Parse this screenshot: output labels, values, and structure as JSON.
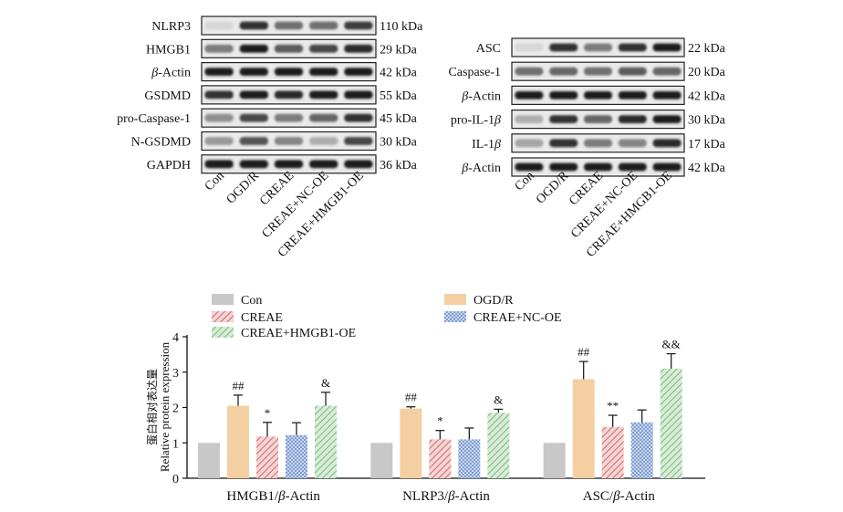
{
  "blots": {
    "left": {
      "rows": [
        {
          "label": "NLRP3",
          "size": "110 kDa",
          "intensity": [
            0.05,
            0.85,
            0.55,
            0.55,
            0.8
          ]
        },
        {
          "label": "HMGB1",
          "size": "29 kDa",
          "intensity": [
            0.5,
            0.95,
            0.65,
            0.75,
            0.9
          ]
        },
        {
          "label": "β-Actin",
          "label_prefix": "β",
          "label_rest": "-Actin",
          "size": "42 kDa",
          "intensity": [
            0.95,
            0.95,
            0.95,
            0.95,
            0.95
          ]
        },
        {
          "label": "GSDMD",
          "size": "55 kDa",
          "intensity": [
            0.85,
            0.95,
            0.9,
            0.95,
            0.95
          ]
        },
        {
          "label": "pro-Caspase-1",
          "size": "45 kDa",
          "intensity": [
            0.4,
            0.75,
            0.5,
            0.6,
            0.85
          ]
        },
        {
          "label": "N-GSDMD",
          "size": "30 kDa",
          "intensity": [
            0.35,
            0.7,
            0.45,
            0.25,
            0.75
          ]
        },
        {
          "label": "GAPDH",
          "size": "36 kDa",
          "intensity": [
            0.95,
            0.95,
            0.95,
            0.95,
            0.95
          ]
        }
      ],
      "lanes": [
        "Con",
        "OGD/R",
        "CREAE",
        "CREAE+NC-OE",
        "CREAE+HMGB1-OE"
      ]
    },
    "right": {
      "rows": [
        {
          "label": "ASC",
          "size": "22 kDa",
          "intensity": [
            0.05,
            0.85,
            0.5,
            0.85,
            0.95
          ]
        },
        {
          "label": "Caspase-1",
          "size": "20 kDa",
          "intensity": [
            0.55,
            0.6,
            0.55,
            0.65,
            0.6
          ]
        },
        {
          "label": "β-Actin",
          "label_prefix": "β",
          "label_rest": "-Actin",
          "size": "42 kDa",
          "intensity": [
            0.95,
            0.95,
            0.95,
            0.95,
            0.95
          ]
        },
        {
          "label": "pro-IL-1β",
          "label_prefix": "pro-IL-1",
          "label_rest": "β",
          "size": "30 kDa",
          "intensity": [
            0.25,
            0.85,
            0.6,
            0.9,
            0.95
          ]
        },
        {
          "label": "IL-1β",
          "label_prefix": "IL-1",
          "label_rest": "β",
          "size": "17 kDa",
          "intensity": [
            0.3,
            0.85,
            0.5,
            0.45,
            0.9
          ]
        },
        {
          "label": "β-Actin",
          "label_prefix": "β",
          "label_rest": "-Actin",
          "size": "42 kDa",
          "intensity": [
            0.95,
            0.95,
            0.95,
            0.95,
            0.95
          ]
        }
      ],
      "lanes": [
        "Con",
        "OGD/R",
        "CREAE",
        "CREAE+NC-OE",
        "CREAE+HMGB1-OE"
      ]
    }
  },
  "chart_data": {
    "type": "bar",
    "categories": [
      "HMGB1/β-Actin",
      "NLRP3/β-Actin",
      "ASC/β-Actin"
    ],
    "category_parts": [
      [
        "HMGB1/",
        "β",
        "-Actin"
      ],
      [
        "NLRP3/",
        "β",
        "-Actin"
      ],
      [
        "ASC/",
        "β",
        "-Actin"
      ]
    ],
    "series": [
      {
        "name": "Con",
        "values": [
          1.0,
          1.0,
          1.0
        ],
        "errors": [
          0,
          0,
          0
        ],
        "marks": [
          "",
          "",
          ""
        ],
        "color": "#c8c8c8",
        "pattern": "solid"
      },
      {
        "name": "OGD/R",
        "values": [
          2.05,
          1.97,
          2.8
        ],
        "errors": [
          0.3,
          0.05,
          0.5
        ],
        "marks": [
          "##",
          "##",
          "##"
        ],
        "color": "#f3cfa2",
        "pattern": "solid"
      },
      {
        "name": "CREAE",
        "values": [
          1.18,
          1.1,
          1.45
        ],
        "errors": [
          0.4,
          0.25,
          0.33
        ],
        "marks": [
          "*",
          "*",
          "**"
        ],
        "color": "#e49a9a",
        "pattern": "diag"
      },
      {
        "name": "CREAE+NC-OE",
        "values": [
          1.22,
          1.1,
          1.58
        ],
        "errors": [
          0.35,
          0.32,
          0.35
        ],
        "marks": [
          "",
          "",
          ""
        ],
        "color": "#8fa9d6",
        "pattern": "grid"
      },
      {
        "name": "CREAE+HMGB1-OE",
        "values": [
          2.05,
          1.85,
          3.1
        ],
        "errors": [
          0.38,
          0.1,
          0.42
        ],
        "marks": [
          "&",
          "&",
          "&&"
        ],
        "color": "#9ccf9c",
        "pattern": "diag"
      }
    ],
    "ylabel": "Relative protein expression",
    "ylabel_cn": "蛋白相对表达量",
    "ylim": [
      0,
      4
    ],
    "yticks": [
      0,
      1,
      2,
      3,
      4
    ],
    "legend_position": "top"
  }
}
